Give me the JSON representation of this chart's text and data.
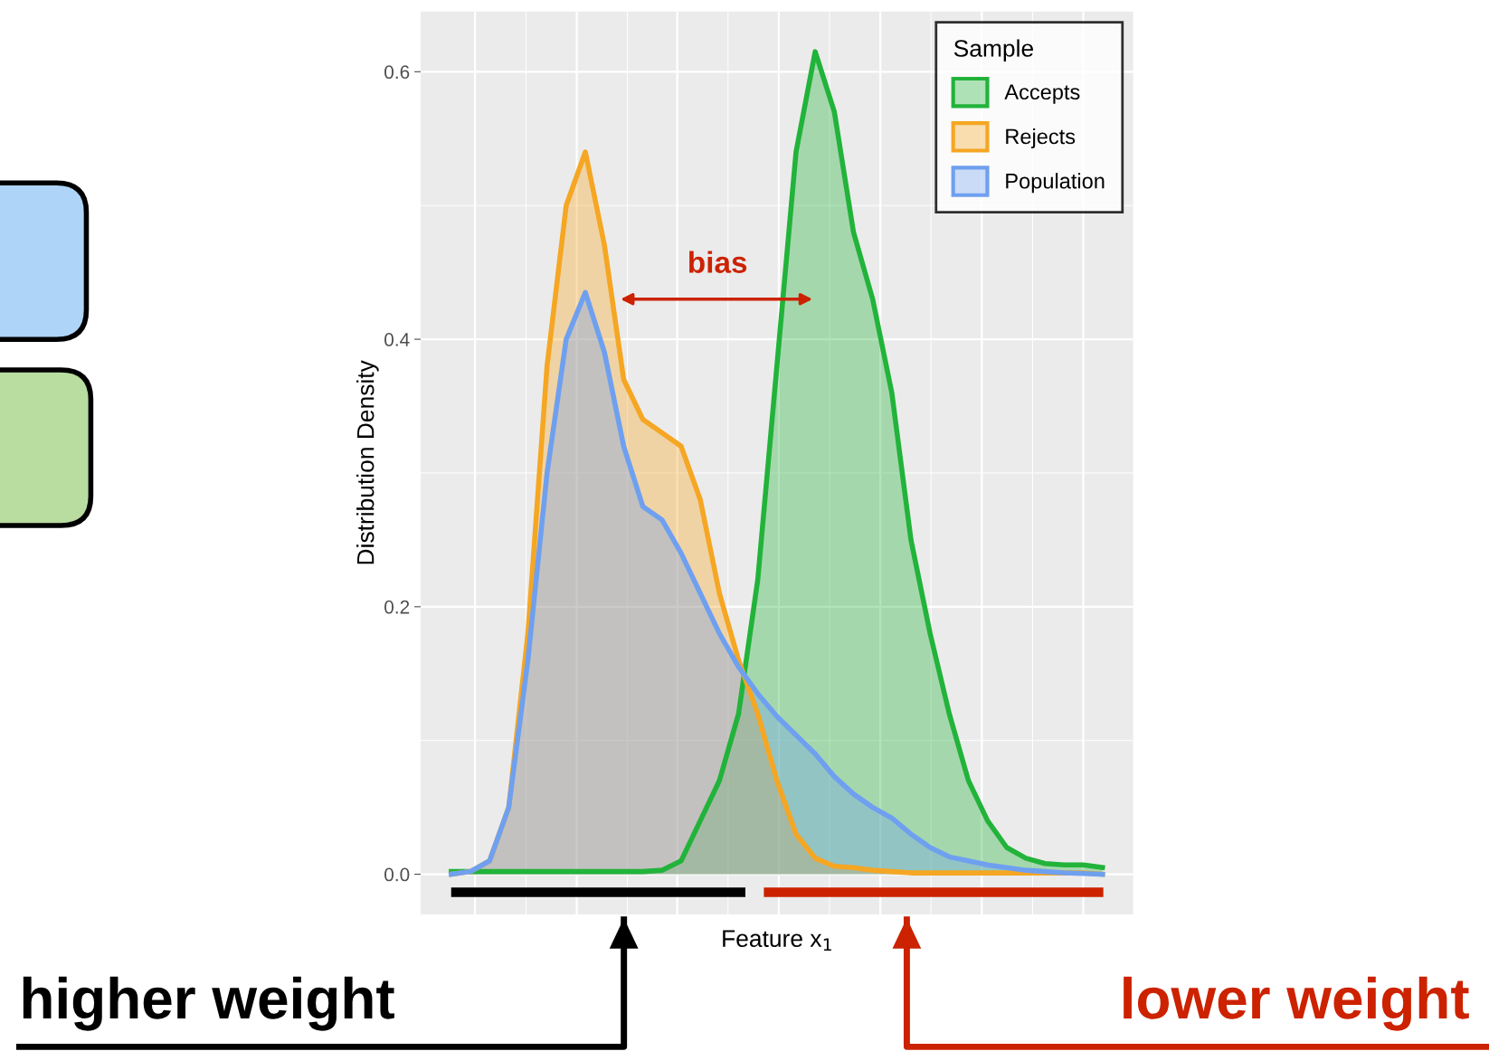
{
  "chart_data": {
    "type": "area",
    "ylabel": "Distribution Density",
    "xlabel": "Feature x$_{1}$",
    "legend_title": "Sample",
    "categories": [
      null,
      null,
      null,
      null,
      null,
      null,
      null,
      null,
      null,
      null,
      null,
      null,
      null,
      null,
      null,
      null,
      null,
      null,
      null,
      null,
      null,
      null,
      null,
      null,
      null,
      null,
      null,
      null,
      null,
      null,
      null,
      null,
      null,
      null,
      null
    ],
    "series": [
      {
        "name": "Accepts",
        "color": "#22b33a",
        "values": [
          0.002,
          0.002,
          0.002,
          0.002,
          0.002,
          0.002,
          0.002,
          0.002,
          0.002,
          0.002,
          0.002,
          0.003,
          0.01,
          0.04,
          0.07,
          0.12,
          0.22,
          0.38,
          0.54,
          0.615,
          0.57,
          0.48,
          0.43,
          0.36,
          0.25,
          0.18,
          0.12,
          0.07,
          0.04,
          0.02,
          0.012,
          0.008,
          0.007,
          0.007,
          0.005
        ]
      },
      {
        "name": "Rejects",
        "color": "#f5a623",
        "values": [
          0,
          0.002,
          0.01,
          0.05,
          0.18,
          0.38,
          0.5,
          0.54,
          0.47,
          0.37,
          0.34,
          0.33,
          0.32,
          0.28,
          0.21,
          0.16,
          0.12,
          0.07,
          0.03,
          0.012,
          0.006,
          0.005,
          0.003,
          0.002,
          0.001,
          0.001,
          0.001,
          0.001,
          0.001,
          0.001,
          0.001,
          0.001,
          0.001,
          0.001,
          0
        ]
      },
      {
        "name": "Population",
        "color": "#6fa0f0",
        "values": [
          0,
          0.002,
          0.01,
          0.05,
          0.16,
          0.3,
          0.4,
          0.435,
          0.39,
          0.32,
          0.275,
          0.265,
          0.24,
          0.21,
          0.18,
          0.155,
          0.135,
          0.118,
          0.104,
          0.09,
          0.073,
          0.06,
          0.05,
          0.042,
          0.03,
          0.02,
          0.013,
          0.01,
          0.007,
          0.005,
          0.003,
          0.002,
          0.001,
          0.0005,
          0
        ]
      }
    ],
    "ylim": [
      -0.03,
      0.645
    ],
    "yticks": [
      {
        "value": 0,
        "label": "0.0"
      },
      0.2,
      0.4,
      0.6
    ],
    "grid": true,
    "legend": "top right",
    "tick_labels": "y",
    "annotations": [
      "bias",
      "higher weight",
      "lower weight"
    ]
  }
}
